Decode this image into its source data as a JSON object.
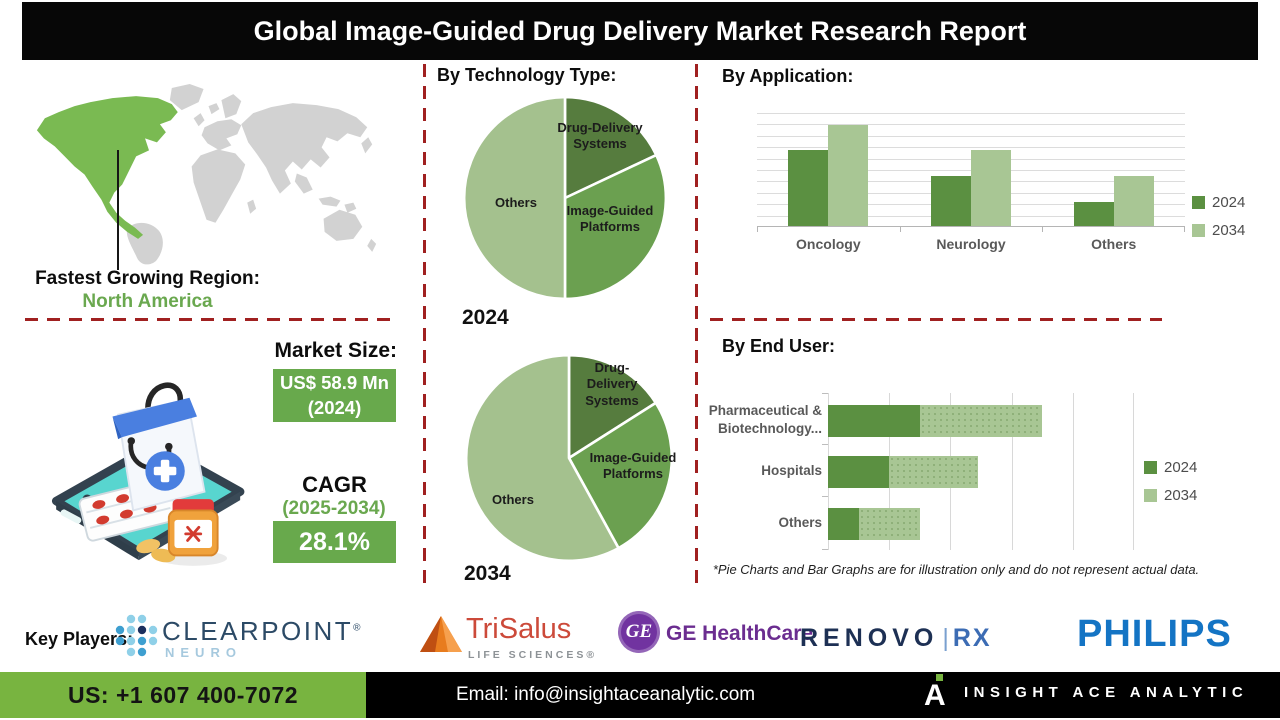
{
  "title": "Global Image-Guided Drug Delivery Market Research Report",
  "left_panel": {
    "region_label": "Fastest Growing Region:",
    "region_value": "North America",
    "market_size_label": "Market Size:",
    "market_size_value": "US$ 58.9 Mn",
    "market_size_year": "(2024)",
    "cagr_label": "CAGR",
    "cagr_period": "(2025-2034)",
    "cagr_value": "28.1%"
  },
  "disclaimer": "*Pie Charts and Bar Graphs are for illustration only and do not represent actual data.",
  "key_players": {
    "label": "Key Players:",
    "clearpoint": {
      "name": "CLEARPOINT",
      "reg": "®",
      "sub": "NEURO"
    },
    "trisalus": {
      "name": "TriSalus",
      "sub": "LIFE SCIENCES®"
    },
    "ge": {
      "monogram": "GE",
      "name": "GE HealthCare"
    },
    "renovorx": {
      "name": "RENOVO",
      "divider": "|",
      "suffix": "RX"
    },
    "philips": {
      "name": "PHILIPS"
    }
  },
  "footer": {
    "phone": "US: +1 607 400-7072",
    "email": "Email: info@insightaceanalytic.com",
    "brand_mark": "A",
    "brand": "INSIGHT ACE ANALYTIC"
  },
  "colors": {
    "accent_red": "#a02020",
    "green_dark": "#5b9041",
    "green_light": "#a8c694",
    "pie_dark": "#567c3e",
    "pie_mid": "#6ba050",
    "pie_light": "#a4c18e",
    "button_green": "#68a94c",
    "footer_green": "#78b440",
    "na_map_green": "#7aba52",
    "map_gray": "#d2d2d2",
    "philips_blue": "#1474c4",
    "ge_purple": "#6b2d90",
    "renovo_navy": "#1d3054",
    "trisalus_red": "#cc4a3a",
    "clearpoint_navy": "#2c4a66"
  },
  "chart_data": [
    {
      "id": "tech_2024",
      "type": "pie",
      "title": "By Technology Type:",
      "year_label": "2024",
      "labels": [
        "Drug-Delivery Systems",
        "Image-Guided Platforms",
        "Others"
      ],
      "values": [
        18,
        32,
        50
      ],
      "unit": "%",
      "colors": [
        "#567c3e",
        "#6ba050",
        "#a4c18e"
      ]
    },
    {
      "id": "tech_2034",
      "type": "pie",
      "year_label": "2034",
      "labels": [
        "Drug-Delivery Systems",
        "Image-Guided Platforms",
        "Others"
      ],
      "values": [
        16,
        26,
        58
      ],
      "unit": "%",
      "colors": [
        "#567c3e",
        "#6ba050",
        "#a4c18e"
      ]
    },
    {
      "id": "application",
      "type": "bar",
      "title": "By Application:",
      "categories": [
        "Oncology",
        "Neurology",
        "Others"
      ],
      "series": [
        {
          "name": "2024",
          "color": "#5b9041",
          "values": [
            6.7,
            4.4,
            2.1
          ]
        },
        {
          "name": "2034",
          "color": "#a8c694",
          "values": [
            8.9,
            6.7,
            4.4
          ]
        }
      ],
      "ylim": [
        0,
        10
      ],
      "grid": true,
      "legend_position": "right"
    },
    {
      "id": "end_user",
      "type": "stacked-hbar",
      "title": "By End User:",
      "categories": [
        "Pharmaceutical & Biotechnology...",
        "Hospitals",
        "Others"
      ],
      "series": [
        {
          "name": "2024",
          "color": "#5b9041",
          "values": [
            1.5,
            1.0,
            0.5
          ]
        },
        {
          "name": "2034",
          "color": "#a8c694",
          "values": [
            2.0,
            1.45,
            1.0
          ]
        }
      ],
      "xlim": [
        0,
        5
      ],
      "grid": true,
      "legend_position": "right"
    }
  ]
}
